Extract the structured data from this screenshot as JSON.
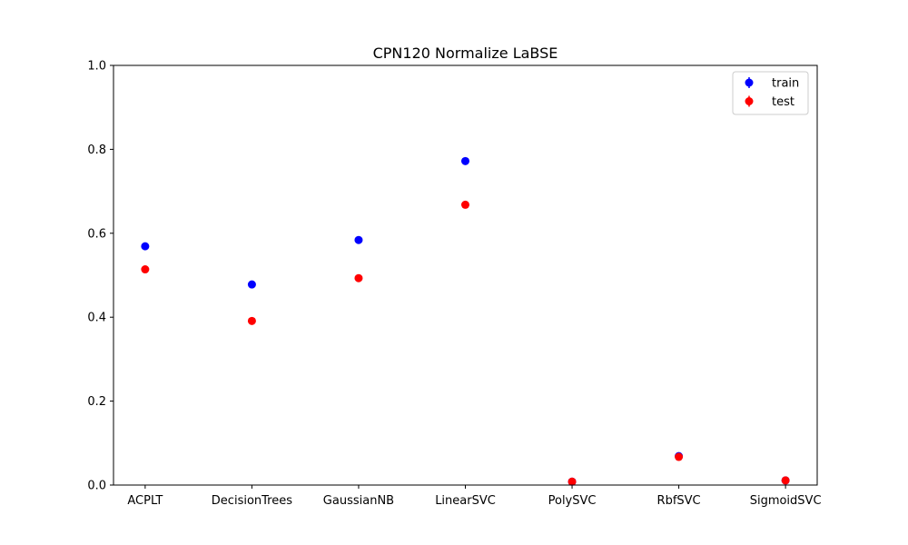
{
  "chart_data": {
    "type": "scatter",
    "title": "CPN120 Normalize LaBSE",
    "xlabel": "",
    "ylabel": "",
    "categories": [
      "ACPLT",
      "DecisionTrees",
      "GaussianNB",
      "LinearSVC",
      "PolySVC",
      "RbfSVC",
      "SigmoidSVC"
    ],
    "ylim": [
      0.0,
      1.0
    ],
    "yticks": [
      "0.0",
      "0.2",
      "0.4",
      "0.6",
      "0.8",
      "1.0"
    ],
    "grid": false,
    "legend_position": "top-right",
    "series": [
      {
        "name": "train",
        "color": "#0000ff",
        "values": [
          0.569,
          0.478,
          0.584,
          0.772,
          0.008,
          0.069,
          0.011
        ]
      },
      {
        "name": "test",
        "color": "#ff0000",
        "values": [
          0.514,
          0.391,
          0.493,
          0.668,
          0.008,
          0.067,
          0.011
        ]
      }
    ]
  }
}
